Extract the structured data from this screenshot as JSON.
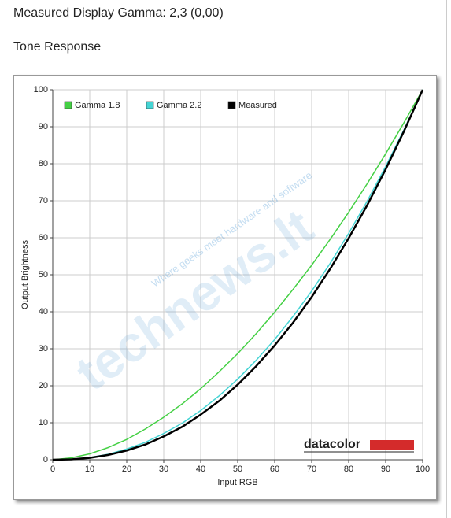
{
  "header": {
    "title": "Measured Display Gamma: 2,3 (0,00)",
    "subtitle": "Tone Response"
  },
  "chart_data": {
    "type": "line",
    "xlabel": "Input RGB",
    "ylabel": "Output Brightness",
    "x": [
      0,
      5,
      10,
      15,
      20,
      25,
      30,
      35,
      40,
      45,
      50,
      55,
      60,
      65,
      70,
      75,
      80,
      85,
      90,
      95,
      100
    ],
    "series": [
      {
        "name": "Gamma 1.8",
        "color": "#44d044",
        "values": [
          0,
          0.5,
          1.6,
          3.3,
          5.5,
          8.3,
          11.5,
          15.1,
          19.2,
          23.8,
          28.7,
          34.1,
          39.9,
          46.1,
          52.6,
          59.6,
          66.9,
          74.6,
          82.7,
          91.2,
          100
        ]
      },
      {
        "name": "Gamma 2.2",
        "color": "#44d4d4",
        "values": [
          0,
          0.1,
          0.6,
          1.5,
          2.9,
          4.7,
          7.1,
          9.9,
          13.3,
          17.3,
          21.8,
          26.9,
          32.5,
          38.8,
          45.6,
          53.1,
          61.2,
          69.9,
          79.3,
          89.3,
          100
        ]
      },
      {
        "name": "Measured",
        "color": "#000000",
        "values": [
          0,
          0.1,
          0.5,
          1.3,
          2.5,
          4.1,
          6.3,
          8.9,
          12.2,
          15.9,
          20.3,
          25.3,
          30.9,
          37.1,
          44.0,
          51.6,
          59.9,
          68.8,
          78.5,
          88.9,
          100
        ]
      }
    ],
    "xlim": [
      0,
      100
    ],
    "ylim": [
      0,
      100
    ],
    "xticks": [
      0,
      10,
      20,
      30,
      40,
      50,
      60,
      70,
      80,
      90,
      100
    ],
    "yticks": [
      0,
      10,
      20,
      30,
      40,
      50,
      60,
      70,
      80,
      90,
      100
    ],
    "grid": true,
    "watermark": "technews.lt",
    "watermark_tagline": "Where geeks meet hardware and software",
    "logo": "datacolor"
  }
}
